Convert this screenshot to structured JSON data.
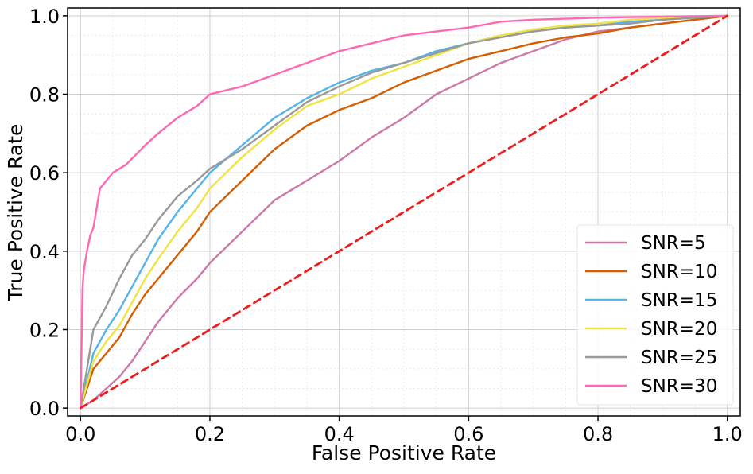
{
  "chart_data": {
    "type": "line",
    "title": "",
    "xlabel": "False Positive Rate",
    "ylabel": "True Positive Rate",
    "xlim": [
      -0.02,
      1.02
    ],
    "ylim": [
      -0.02,
      1.02
    ],
    "xticks": [
      0.0,
      0.2,
      0.4,
      0.6,
      0.8,
      1.0
    ],
    "yticks": [
      0.0,
      0.2,
      0.4,
      0.6,
      0.8,
      1.0
    ],
    "xtick_labels": [
      "0.0",
      "0.2",
      "0.4",
      "0.6",
      "0.8",
      "1.0"
    ],
    "ytick_labels": [
      "0.0",
      "0.2",
      "0.4",
      "0.6",
      "0.8",
      "1.0"
    ],
    "grid": true,
    "legend_position": "bottom-right",
    "series": [
      {
        "name": "SNR=5",
        "color": "#cc79a7",
        "x": [
          0.0,
          0.02,
          0.04,
          0.06,
          0.08,
          0.1,
          0.12,
          0.15,
          0.18,
          0.2,
          0.25,
          0.3,
          0.35,
          0.4,
          0.45,
          0.5,
          0.55,
          0.6,
          0.65,
          0.7,
          0.75,
          0.8,
          0.85,
          0.9,
          0.95,
          1.0
        ],
        "values": [
          0.0,
          0.02,
          0.05,
          0.08,
          0.12,
          0.17,
          0.22,
          0.28,
          0.33,
          0.37,
          0.45,
          0.53,
          0.58,
          0.63,
          0.69,
          0.74,
          0.8,
          0.84,
          0.88,
          0.91,
          0.94,
          0.96,
          0.97,
          0.98,
          0.99,
          1.0
        ]
      },
      {
        "name": "SNR=10",
        "color": "#d55e00",
        "x": [
          0.0,
          0.02,
          0.04,
          0.06,
          0.08,
          0.1,
          0.12,
          0.15,
          0.18,
          0.2,
          0.25,
          0.3,
          0.35,
          0.4,
          0.45,
          0.5,
          0.55,
          0.6,
          0.65,
          0.7,
          0.75,
          0.8,
          0.85,
          0.9,
          0.95,
          1.0
        ],
        "values": [
          0.0,
          0.1,
          0.14,
          0.18,
          0.24,
          0.29,
          0.33,
          0.39,
          0.45,
          0.5,
          0.58,
          0.66,
          0.72,
          0.76,
          0.79,
          0.83,
          0.86,
          0.89,
          0.91,
          0.93,
          0.945,
          0.955,
          0.97,
          0.98,
          0.99,
          1.0
        ]
      },
      {
        "name": "SNR=15",
        "color": "#56b4e9",
        "x": [
          0.0,
          0.02,
          0.04,
          0.06,
          0.08,
          0.1,
          0.12,
          0.15,
          0.18,
          0.2,
          0.25,
          0.3,
          0.35,
          0.4,
          0.45,
          0.5,
          0.55,
          0.6,
          0.65,
          0.7,
          0.75,
          0.8,
          0.85,
          0.9,
          0.95,
          1.0
        ],
        "values": [
          0.0,
          0.14,
          0.2,
          0.25,
          0.31,
          0.37,
          0.43,
          0.5,
          0.56,
          0.6,
          0.67,
          0.74,
          0.79,
          0.83,
          0.86,
          0.88,
          0.91,
          0.93,
          0.95,
          0.96,
          0.97,
          0.975,
          0.985,
          0.99,
          0.995,
          1.0
        ]
      },
      {
        "name": "SNR=20",
        "color": "#f0e442",
        "x": [
          0.0,
          0.02,
          0.04,
          0.06,
          0.08,
          0.1,
          0.12,
          0.15,
          0.18,
          0.2,
          0.25,
          0.3,
          0.35,
          0.4,
          0.45,
          0.5,
          0.55,
          0.6,
          0.65,
          0.7,
          0.75,
          0.8,
          0.85,
          0.9,
          0.95,
          1.0
        ],
        "values": [
          0.0,
          0.12,
          0.17,
          0.21,
          0.27,
          0.33,
          0.38,
          0.45,
          0.51,
          0.56,
          0.64,
          0.71,
          0.77,
          0.8,
          0.84,
          0.87,
          0.9,
          0.93,
          0.95,
          0.965,
          0.975,
          0.98,
          0.99,
          0.995,
          0.998,
          1.0
        ]
      },
      {
        "name": "SNR=25",
        "color": "#999999",
        "x": [
          0.0,
          0.02,
          0.04,
          0.06,
          0.08,
          0.1,
          0.12,
          0.15,
          0.18,
          0.2,
          0.25,
          0.3,
          0.35,
          0.4,
          0.45,
          0.5,
          0.55,
          0.6,
          0.65,
          0.7,
          0.75,
          0.8,
          0.85,
          0.9,
          0.95,
          1.0
        ],
        "values": [
          0.0,
          0.2,
          0.26,
          0.33,
          0.39,
          0.43,
          0.48,
          0.54,
          0.58,
          0.61,
          0.66,
          0.72,
          0.78,
          0.82,
          0.855,
          0.88,
          0.905,
          0.93,
          0.945,
          0.96,
          0.97,
          0.975,
          0.98,
          0.99,
          0.995,
          1.0
        ]
      },
      {
        "name": "SNR=30",
        "color": "#ff69b4",
        "x": [
          0.0,
          0.003,
          0.005,
          0.01,
          0.015,
          0.02,
          0.03,
          0.05,
          0.07,
          0.1,
          0.12,
          0.15,
          0.18,
          0.2,
          0.25,
          0.3,
          0.35,
          0.4,
          0.45,
          0.5,
          0.55,
          0.6,
          0.65,
          0.7,
          0.8,
          0.9,
          1.0
        ],
        "values": [
          0.0,
          0.3,
          0.35,
          0.4,
          0.44,
          0.46,
          0.56,
          0.6,
          0.62,
          0.67,
          0.7,
          0.74,
          0.77,
          0.8,
          0.82,
          0.85,
          0.88,
          0.91,
          0.93,
          0.95,
          0.96,
          0.97,
          0.985,
          0.99,
          0.995,
          0.998,
          1.0
        ]
      },
      {
        "name": "",
        "color": "#ee1c1c",
        "dashed": true,
        "in_legend": false,
        "x": [
          0.0,
          1.0
        ],
        "values": [
          0.0,
          1.0
        ]
      }
    ]
  }
}
